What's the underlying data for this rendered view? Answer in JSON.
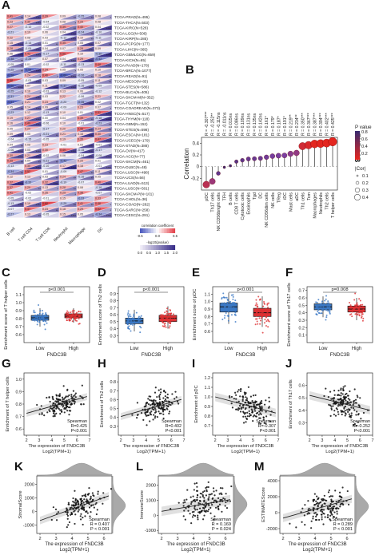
{
  "panel_letters": [
    "A",
    "B",
    "C",
    "D",
    "E",
    "F",
    "G",
    "H",
    "I",
    "J",
    "K",
    "L",
    "M"
  ],
  "panelA": {
    "cancers": [
      "TCGA-PRAD(N=495)",
      "TCGA-THCA(N=503)",
      "TCGA-KIRC(N=528)",
      "TCGA-LGG(N=506)",
      "TCGA-KIRP(N=285)",
      "TCGA-PCPG(N=177)",
      "TCGA-LIHC(N=365)",
      "TCGA-GBMLGG(N=659)",
      "TCGA-KICH(N=65)",
      "TCGA-PAAD(N=178)",
      "TCGA-BRCA(N=1077)",
      "TCGA-READ(N=91)",
      "TCGA-MESO(N=85)",
      "TCGA-STES(N=586)",
      "TCGA-BLCA(N=405)",
      "TCGA-SKCM-M(N=352)",
      "TCGA-TGCT(N=132)",
      "TCGA-COADREAD(N=373)",
      "TCGA-HNSC(N=517)",
      "TCGA-THYM(N=118)",
      "TCGA-GBM(N=152)",
      "TCGA-STES(N=598)",
      "TCGA-ESCA(N=181)",
      "TCGA-UCEC(N=179)",
      "TCGA-STAD(N=388)",
      "TCGA-OV(N=417)",
      "TCGA-ACC(N=77)",
      "TCGA-SKCM(N=461)",
      "TCGA-DLBC(N=48)",
      "TCGA-LUSC(N=498)",
      "TCGA-UCS(N=56)",
      "TCGA-LUAD(N=513)",
      "TCGA-LUSC(N=501)",
      "TCGA-SKCM-P(N=101)",
      "TCGA-CHOL(N=36)",
      "TCGA-COAD(N=282)",
      "TCGA-SARC(N=258)",
      "TCGA-CESC(N=291)"
    ],
    "cells": [
      "B cell",
      "T cell CD4",
      "T cell CD8",
      "Neutrophil",
      "Macrophage",
      "DC"
    ],
    "legend_title_top": "correlation coefficient",
    "legend_title_bottom": "-log10(pvalue)",
    "legend_ticks_top": [
      "-0.5",
      "0.0",
      "0.5"
    ],
    "legend_ticks_bottom": [
      "0.0",
      "0.5",
      "1.0",
      "1.5",
      "2.0"
    ]
  },
  "chart_data": [
    {
      "panel": "B",
      "type": "scatter",
      "title": "",
      "xlabel": "",
      "ylabel": "Correlation",
      "side_label": "FNDC3B",
      "ylim": [
        -0.4,
        0.5
      ],
      "yticks": [
        "-0.2",
        "0",
        "0.2",
        "0.4"
      ],
      "categories": [
        "pDC",
        "Th17 cells",
        "NK CD56bright cells",
        "TFH",
        "B cells",
        "CD8 T cells",
        "Cytotoxic cells",
        "Eosinophils",
        "Tgd",
        "DC",
        "NK CD56dim cells",
        "NK cells",
        "TReg",
        "iDC",
        "Mast cells",
        "aDC",
        "Th1 cells",
        "Tcm",
        "Macrophages",
        "Neutrophils",
        "Th2 cells",
        "T helper cells"
      ],
      "values": [
        -0.307,
        -0.252,
        -0.115,
        -0.011,
        0.015,
        0.086,
        0.109,
        0.131,
        0.135,
        0.142,
        0.161,
        0.179,
        0.187,
        0.191,
        0.219,
        0.234,
        0.35,
        0.367,
        0.387,
        0.394,
        0.402,
        0.425
      ],
      "annotations": [
        "R = -0.307***",
        "R = -0.252**",
        "R = -0.115ns",
        "R = -0.011ns",
        "R = 0.015ns",
        "R = 0.086ns",
        "R = 0.109ns",
        "R = 0.131ns",
        "R = 0.135ns",
        "R = 0.142ns",
        "R = 0.161*",
        "R = 0.179*",
        "R = 0.187*",
        "R = 0.191*",
        "R = 0.219**",
        "R = 0.234**",
        "R = 0.350***",
        "R = 0.367***",
        "R = 0.387***",
        "R = 0.394***",
        "R = 0.402***",
        "R = 0.425***"
      ],
      "legend": {
        "pvalue_title": "P value",
        "pvalue_ticks": [
          "0.8",
          "0.6",
          "0.4",
          "0.2"
        ],
        "cor_title": "|Cor|",
        "cor_ticks": [
          "0.1",
          "0.2",
          "0.3",
          "0.4"
        ]
      }
    },
    {
      "panel": "C",
      "type": "box",
      "xlabel": "FNDC3B",
      "ylabel": "Enrichment score of T helper cells",
      "categories": [
        "Low",
        "High"
      ],
      "pvalue": "p<0.001",
      "ylim": [
        0.5,
        1.2
      ],
      "yticks": [
        "0.6",
        "0.7",
        "0.8",
        "0.9",
        "1.0",
        "1.1"
      ],
      "boxes": [
        {
          "q1": 0.78,
          "median": 0.81,
          "q3": 0.84,
          "lo": 0.7,
          "hi": 0.93
        },
        {
          "q1": 0.81,
          "median": 0.83,
          "q3": 0.86,
          "lo": 0.75,
          "hi": 0.93
        }
      ]
    },
    {
      "panel": "D",
      "type": "box",
      "xlabel": "FNDC3B",
      "ylabel": "Enrichment score of Th2 cells",
      "categories": [
        "Low",
        "High"
      ],
      "pvalue": "p<0.001",
      "ylim": [
        0.2,
        1.0
      ],
      "yticks": [
        "0.3",
        "0.4",
        "0.5",
        "0.6",
        "0.7",
        "0.8",
        "0.9"
      ],
      "boxes": [
        {
          "q1": 0.47,
          "median": 0.51,
          "q3": 0.55,
          "lo": 0.36,
          "hi": 0.67
        },
        {
          "q1": 0.5,
          "median": 0.55,
          "q3": 0.59,
          "lo": 0.4,
          "hi": 0.72
        }
      ]
    },
    {
      "panel": "E",
      "type": "box",
      "xlabel": "FNDC3B",
      "ylabel": "Enrichment score of pDC",
      "categories": [
        "Low",
        "High"
      ],
      "pvalue": "p<0.001",
      "ylim": [
        0.45,
        1.2
      ],
      "yticks": [
        "0.6",
        "0.7",
        "0.8",
        "0.9",
        "1.0",
        "1.1"
      ],
      "boxes": [
        {
          "q1": 0.86,
          "median": 0.93,
          "q3": 0.98,
          "lo": 0.7,
          "hi": 1.12
        },
        {
          "q1": 0.8,
          "median": 0.85,
          "q3": 0.91,
          "lo": 0.66,
          "hi": 1.07
        }
      ]
    },
    {
      "panel": "F",
      "type": "box",
      "xlabel": "FNDC3B",
      "ylabel": "Enrichment score of Th17 cells",
      "categories": [
        "Low",
        "High"
      ],
      "pvalue": "p=0.008",
      "ylim": [
        0.0,
        0.75
      ],
      "yticks": [
        "0.1",
        "0.2",
        "0.3",
        "0.4",
        "0.5",
        "0.6",
        "0.7"
      ],
      "boxes": [
        {
          "q1": 0.44,
          "median": 0.48,
          "q3": 0.52,
          "lo": 0.34,
          "hi": 0.62
        },
        {
          "q1": 0.41,
          "median": 0.45,
          "q3": 0.49,
          "lo": 0.3,
          "hi": 0.6
        }
      ]
    },
    {
      "panel": "G",
      "type": "scatter",
      "xlabel": "The expression of FNDC3B",
      "xlabel2": "Log2(TPM+1)",
      "ylabel": "Enrichment of T helper cells",
      "xlim": [
        1.8,
        7.0
      ],
      "ylim": [
        0.55,
        1.05
      ],
      "xticks": [
        "2",
        "3",
        "4",
        "5",
        "6",
        "7"
      ],
      "yticks": [
        "0.6",
        "0.7",
        "0.8",
        "0.9",
        "1.0"
      ],
      "stats": [
        "Spearman",
        "R=0.425",
        "P<0.001"
      ],
      "slope": 0.028,
      "intercept": 0.67,
      "n": 150,
      "seed": 11,
      "xmean": 4.8,
      "xsd": 0.7,
      "resid": 0.05
    },
    {
      "panel": "H",
      "type": "scatter",
      "xlabel": "The expression of FNDC3B",
      "xlabel2": "Log2(TPM+1)",
      "ylabel": "Enrichment of Th2 cells",
      "xlim": [
        1.8,
        7.0
      ],
      "ylim": [
        0.2,
        0.9
      ],
      "xticks": [
        "2",
        "3",
        "4",
        "5",
        "6",
        "7"
      ],
      "yticks": [
        "0.3",
        "0.4",
        "0.5",
        "0.6",
        "0.7",
        "0.8"
      ],
      "stats": [
        "Spearman",
        "R=0.402",
        "P<0.001"
      ],
      "slope": 0.04,
      "intercept": 0.33,
      "n": 150,
      "seed": 23,
      "xmean": 4.8,
      "xsd": 0.7,
      "resid": 0.07
    },
    {
      "panel": "I",
      "type": "scatter",
      "xlabel": "The expression of FNDC3B",
      "xlabel2": "Log2(TPM+1)",
      "ylabel": "Enrichment of pDC",
      "xlim": [
        1.8,
        7.0
      ],
      "ylim": [
        0.6,
        1.25
      ],
      "xticks": [
        "2",
        "3",
        "4",
        "5",
        "6",
        "7"
      ],
      "yticks": [
        "0.7",
        "0.8",
        "0.9",
        "1.0",
        "1.1",
        "1.2"
      ],
      "stats": [
        "Spearman",
        "R=-0.307",
        "P<0.001"
      ],
      "slope": -0.035,
      "intercept": 1.07,
      "n": 150,
      "seed": 37,
      "xmean": 4.8,
      "xsd": 0.7,
      "resid": 0.08
    },
    {
      "panel": "J",
      "type": "scatter",
      "xlabel": "The expression of FNDC3B",
      "xlabel2": "Log2(TPM+1)",
      "ylabel": "Enrichment of Th17 cells",
      "xlim": [
        1.8,
        7.0
      ],
      "ylim": [
        0.2,
        0.7
      ],
      "xticks": [
        "2",
        "3",
        "4",
        "5",
        "6",
        "7"
      ],
      "yticks": [
        "0.3",
        "0.4",
        "0.5",
        "0.6"
      ],
      "stats": [
        "Spearman",
        "R=-0.252",
        "P<0.001"
      ],
      "slope": -0.025,
      "intercept": 0.57,
      "n": 150,
      "seed": 41,
      "xmean": 4.8,
      "xsd": 0.7,
      "resid": 0.06
    },
    {
      "panel": "K",
      "type": "scatter",
      "xlabel": "The expression of FNDC3B",
      "xlabel2": "Log2(TPM+1)",
      "ylabel": "StromalScore",
      "xlim": [
        1.8,
        6.5
      ],
      "ylim": [
        -1600,
        2600
      ],
      "xticks": [
        "2",
        "3",
        "4",
        "5",
        "6"
      ],
      "yticks": [
        "-1000",
        "0",
        "1000",
        "2000"
      ],
      "stats": [
        "Spearman",
        "R = 0.407",
        "P < 0.001"
      ],
      "slope": 420,
      "intercept": -1500,
      "n": 150,
      "seed": 53,
      "xmean": 4.6,
      "xsd": 0.7,
      "resid": 500
    },
    {
      "panel": "L",
      "type": "scatter",
      "xlabel": "The expression of FNDC3B",
      "xlabel2": "Log2(TPM+1)",
      "ylabel": "ImmuneScore",
      "xlim": [
        1.8,
        6.5
      ],
      "ylim": [
        -1200,
        2600
      ],
      "xticks": [
        "2",
        "3",
        "4",
        "5",
        "6"
      ],
      "yticks": [
        "-1000",
        "0",
        "1000",
        "2000"
      ],
      "stats": [
        "Spearman",
        "R = 0.169",
        "P = 0.024"
      ],
      "slope": 180,
      "intercept": -100,
      "n": 150,
      "seed": 67,
      "xmean": 4.6,
      "xsd": 0.7,
      "resid": 550
    },
    {
      "panel": "M",
      "type": "scatter",
      "xlabel": "The expression of FNDC3B",
      "xlabel2": "Log2(TPM+1)",
      "ylabel": "ESTIMATEScore",
      "xlim": [
        1.8,
        6.5
      ],
      "ylim": [
        -2600,
        4600
      ],
      "xticks": [
        "2",
        "3",
        "4",
        "5",
        "6"
      ],
      "yticks": [
        "-2000",
        "0",
        "2000",
        "4000"
      ],
      "stats": [
        "Spearman",
        "R = 0.289",
        "P < 0.001"
      ],
      "slope": 560,
      "intercept": -1800,
      "n": 150,
      "seed": 79,
      "xmean": 4.6,
      "xsd": 0.7,
      "resid": 900
    }
  ]
}
